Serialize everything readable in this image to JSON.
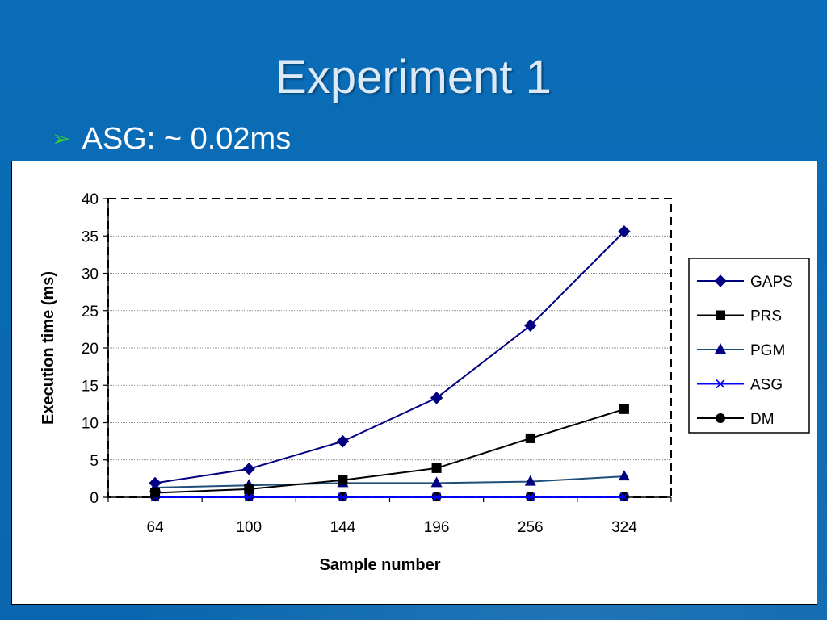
{
  "slide": {
    "title": "Experiment 1",
    "bullet_icon": "arrow-bullet-icon",
    "bullet_text": "ASG: ~ 0.02ms",
    "background_color": "#0a6ab4",
    "bullet_icon_color": "#33cc33"
  },
  "chart_data": {
    "type": "line",
    "title": "",
    "xlabel": "Sample number",
    "ylabel": "Execution time (ms)",
    "categories": [
      "64",
      "100",
      "144",
      "196",
      "256",
      "324"
    ],
    "ylim": [
      0,
      40
    ],
    "yticks": [
      0,
      5,
      10,
      15,
      20,
      25,
      30,
      35,
      40
    ],
    "grid": "horizontal",
    "legend": "right",
    "series": [
      {
        "name": "GAPS",
        "values": [
          1.9,
          3.8,
          7.5,
          13.3,
          23.0,
          35.6
        ],
        "color": "#000080",
        "marker": "diamond"
      },
      {
        "name": "PRS",
        "values": [
          0.6,
          1.1,
          2.3,
          3.9,
          7.9,
          11.8
        ],
        "color": "#000000",
        "marker": "square"
      },
      {
        "name": "PGM",
        "values": [
          1.3,
          1.6,
          1.9,
          1.9,
          2.1,
          2.8
        ],
        "color": "#1f4e79",
        "marker": "triangle"
      },
      {
        "name": "ASG",
        "values": [
          0.02,
          0.02,
          0.02,
          0.02,
          0.02,
          0.02
        ],
        "color": "#0000ff",
        "marker": "x"
      },
      {
        "name": "DM",
        "values": [
          0.1,
          0.1,
          0.1,
          0.1,
          0.1,
          0.1
        ],
        "color": "#000000",
        "marker": "circle"
      }
    ]
  }
}
